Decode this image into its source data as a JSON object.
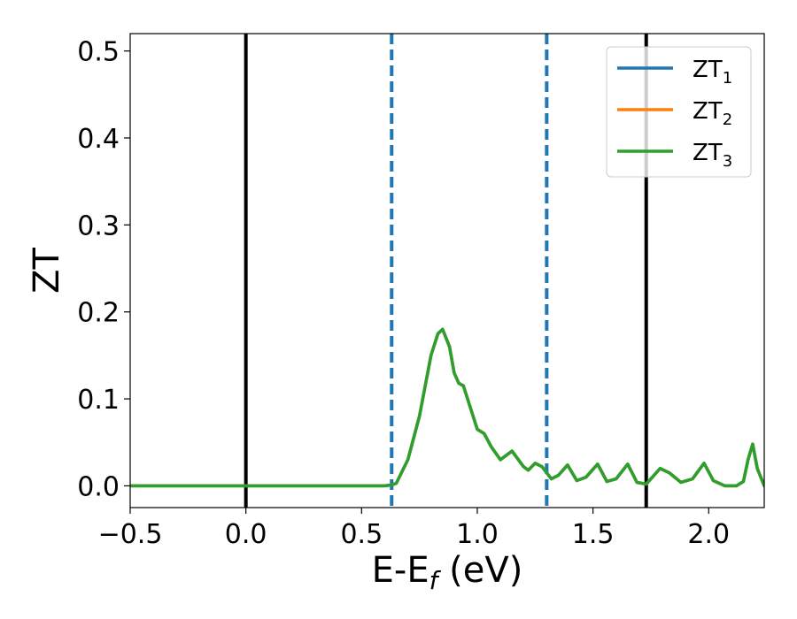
{
  "chart_data": {
    "type": "line",
    "title": "",
    "xlabel": "E-E_f (eV)",
    "ylabel": "ZT",
    "xlim": [
      -0.5,
      2.24
    ],
    "ylim": [
      -0.025,
      0.52
    ],
    "xticks": [
      {
        "value": -0.5,
        "label": "−0.5"
      },
      {
        "value": 0.0,
        "label": "0.0"
      },
      {
        "value": 0.5,
        "label": "0.5"
      },
      {
        "value": 1.0,
        "label": "1.0"
      },
      {
        "value": 1.5,
        "label": "1.5"
      },
      {
        "value": 2.0,
        "label": "2.0"
      }
    ],
    "yticks": [
      {
        "value": 0.0,
        "label": "0.0"
      },
      {
        "value": 0.1,
        "label": "0.1"
      },
      {
        "value": 0.2,
        "label": "0.2"
      },
      {
        "value": 0.3,
        "label": "0.3"
      },
      {
        "value": 0.4,
        "label": "0.4"
      },
      {
        "value": 0.5,
        "label": "0.5"
      }
    ],
    "grid": false,
    "legend_position": "top-right",
    "vlines": [
      {
        "x": 0.0,
        "style": "solid",
        "color": "#000000"
      },
      {
        "x": 1.73,
        "style": "solid",
        "color": "#000000"
      },
      {
        "x": 0.63,
        "style": "dashed",
        "color": "#1f77b4"
      },
      {
        "x": 1.3,
        "style": "dashed",
        "color": "#1f77b4"
      }
    ],
    "x": [
      -0.5,
      0.0,
      0.5,
      0.55,
      0.6,
      0.63,
      0.65,
      0.7,
      0.75,
      0.8,
      0.83,
      0.85,
      0.88,
      0.9,
      0.92,
      0.94,
      0.97,
      1.0,
      1.03,
      1.06,
      1.1,
      1.15,
      1.2,
      1.22,
      1.25,
      1.28,
      1.32,
      1.35,
      1.39,
      1.43,
      1.47,
      1.52,
      1.56,
      1.6,
      1.65,
      1.69,
      1.73,
      1.75,
      1.79,
      1.83,
      1.88,
      1.93,
      1.98,
      2.02,
      2.07,
      2.12,
      2.15,
      2.17,
      2.19,
      2.21,
      2.24
    ],
    "series": [
      {
        "name": "ZT_1",
        "label_main": "ZT",
        "label_sub": "1",
        "color": "#1f77b4",
        "values": [
          0.0,
          0.0,
          0.0,
          0.0,
          0.0,
          0.001,
          0.003,
          0.03,
          0.08,
          0.15,
          0.175,
          0.18,
          0.16,
          0.13,
          0.118,
          0.115,
          0.09,
          0.065,
          0.06,
          0.045,
          0.03,
          0.04,
          0.022,
          0.018,
          0.026,
          0.022,
          0.008,
          0.012,
          0.024,
          0.006,
          0.01,
          0.025,
          0.005,
          0.008,
          0.025,
          0.004,
          0.002,
          0.008,
          0.02,
          0.015,
          0.004,
          0.008,
          0.026,
          0.006,
          0.0,
          0.0,
          0.005,
          0.03,
          0.048,
          0.02,
          0.0
        ]
      },
      {
        "name": "ZT_2",
        "label_main": "ZT",
        "label_sub": "2",
        "color": "#ff7f0e",
        "values": [
          0.0,
          0.0,
          0.0,
          0.0,
          0.0,
          0.001,
          0.003,
          0.03,
          0.08,
          0.15,
          0.175,
          0.18,
          0.16,
          0.13,
          0.118,
          0.115,
          0.09,
          0.065,
          0.06,
          0.045,
          0.03,
          0.04,
          0.022,
          0.018,
          0.026,
          0.022,
          0.008,
          0.012,
          0.024,
          0.006,
          0.01,
          0.025,
          0.005,
          0.008,
          0.025,
          0.004,
          0.002,
          0.008,
          0.02,
          0.015,
          0.004,
          0.008,
          0.026,
          0.006,
          0.0,
          0.0,
          0.005,
          0.03,
          0.048,
          0.02,
          0.0
        ]
      },
      {
        "name": "ZT_3",
        "label_main": "ZT",
        "label_sub": "3",
        "color": "#2ca02c",
        "values": [
          0.0,
          0.0,
          0.0,
          0.0,
          0.0,
          0.001,
          0.003,
          0.03,
          0.08,
          0.15,
          0.175,
          0.18,
          0.16,
          0.13,
          0.118,
          0.115,
          0.09,
          0.065,
          0.06,
          0.045,
          0.03,
          0.04,
          0.022,
          0.018,
          0.026,
          0.022,
          0.008,
          0.012,
          0.024,
          0.006,
          0.01,
          0.025,
          0.005,
          0.008,
          0.025,
          0.004,
          0.002,
          0.008,
          0.02,
          0.015,
          0.004,
          0.008,
          0.026,
          0.006,
          0.0,
          0.0,
          0.005,
          0.03,
          0.048,
          0.02,
          0.0
        ]
      }
    ]
  }
}
